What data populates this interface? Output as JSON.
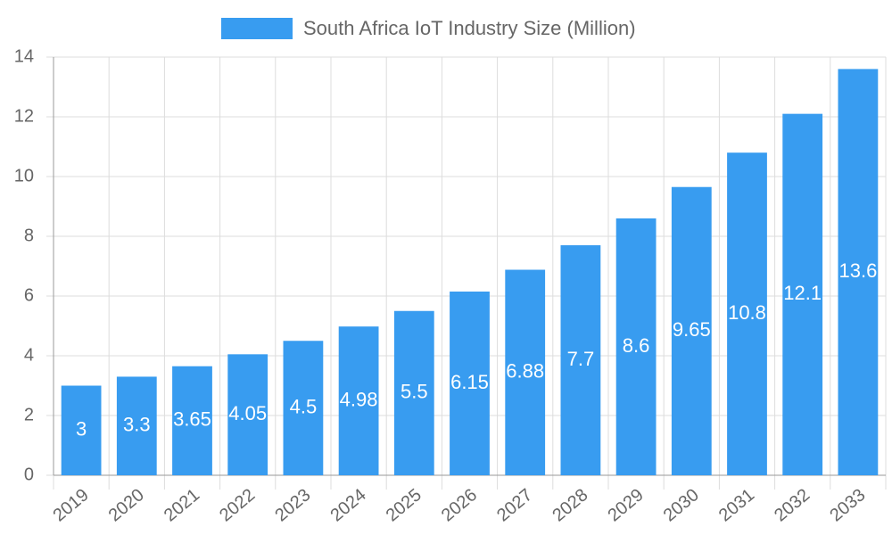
{
  "chart_data": {
    "type": "bar",
    "legend": "South Africa IoT Industry Size (Million)",
    "categories": [
      "2019",
      "2020",
      "2021",
      "2022",
      "2023",
      "2024",
      "2025",
      "2026",
      "2027",
      "2028",
      "2029",
      "2030",
      "2031",
      "2032",
      "2033"
    ],
    "values": [
      3,
      3.3,
      3.65,
      4.05,
      4.5,
      4.98,
      5.5,
      6.15,
      6.88,
      7.7,
      8.6,
      9.65,
      10.8,
      12.1,
      13.6
    ],
    "color": "#389cf0",
    "ylim": [
      0,
      14
    ],
    "yticks": [
      0,
      2,
      4,
      6,
      8,
      10,
      12,
      14
    ],
    "grid": true
  }
}
